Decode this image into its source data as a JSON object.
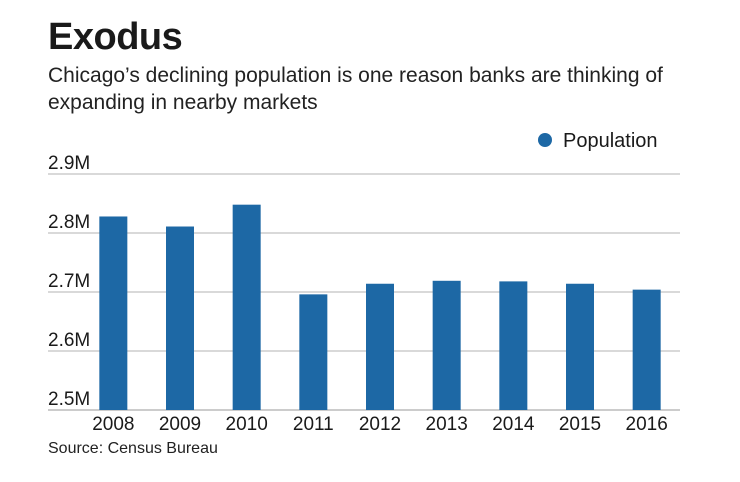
{
  "chart_data": {
    "type": "bar",
    "title": "Exodus",
    "subtitle": "Chicago’s declining population is one reason banks are thinking of expanding in nearby markets",
    "source": "Source: Census Bureau",
    "xlabel": "",
    "ylabel": "",
    "categories": [
      "2008",
      "2009",
      "2010",
      "2011",
      "2012",
      "2013",
      "2014",
      "2015",
      "2016"
    ],
    "series": [
      {
        "name": "Population",
        "color": "#1d68a5",
        "values": [
          2.828,
          2.811,
          2.848,
          2.696,
          2.714,
          2.719,
          2.718,
          2.714,
          2.704
        ]
      }
    ],
    "ylim": [
      2.5,
      2.9
    ],
    "yticks": [
      {
        "value": 2.9,
        "label": "2.9M"
      },
      {
        "value": 2.8,
        "label": "2.8M"
      },
      {
        "value": 2.7,
        "label": "2.7M"
      },
      {
        "value": 2.6,
        "label": "2.6M"
      },
      {
        "value": 2.5,
        "label": "2.5M"
      }
    ],
    "units": "millions",
    "grid": true,
    "legend_position": "top-right"
  }
}
